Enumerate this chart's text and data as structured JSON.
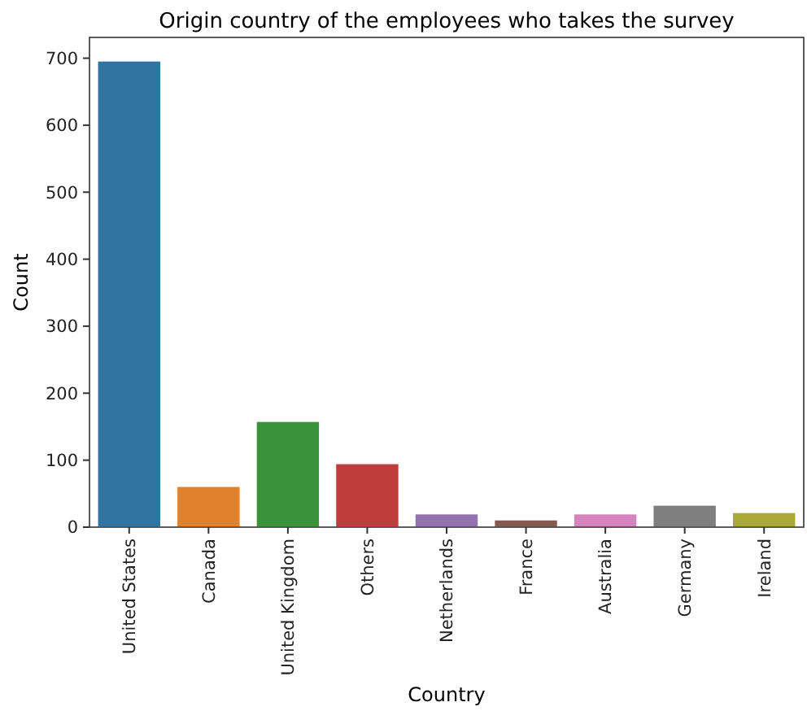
{
  "chart_data": {
    "type": "bar",
    "title": "Origin country of the employees who takes the survey",
    "xlabel": "Country",
    "ylabel": "Count",
    "categories": [
      "United States",
      "Canada",
      "United Kingdom",
      "Others",
      "Netherlands",
      "France",
      "Australia",
      "Germany",
      "Ireland"
    ],
    "values": [
      696,
      61,
      158,
      95,
      20,
      11,
      20,
      33,
      22
    ],
    "colors": [
      "#3274a1",
      "#e1812c",
      "#3a923a",
      "#c03d3e",
      "#9372b2",
      "#845b53",
      "#d684bd",
      "#7f7f7f",
      "#a9aa35"
    ],
    "ylim": [
      0,
      731
    ],
    "yticks": [
      0,
      100,
      200,
      300,
      400,
      500,
      600,
      700
    ],
    "grid": false
  }
}
